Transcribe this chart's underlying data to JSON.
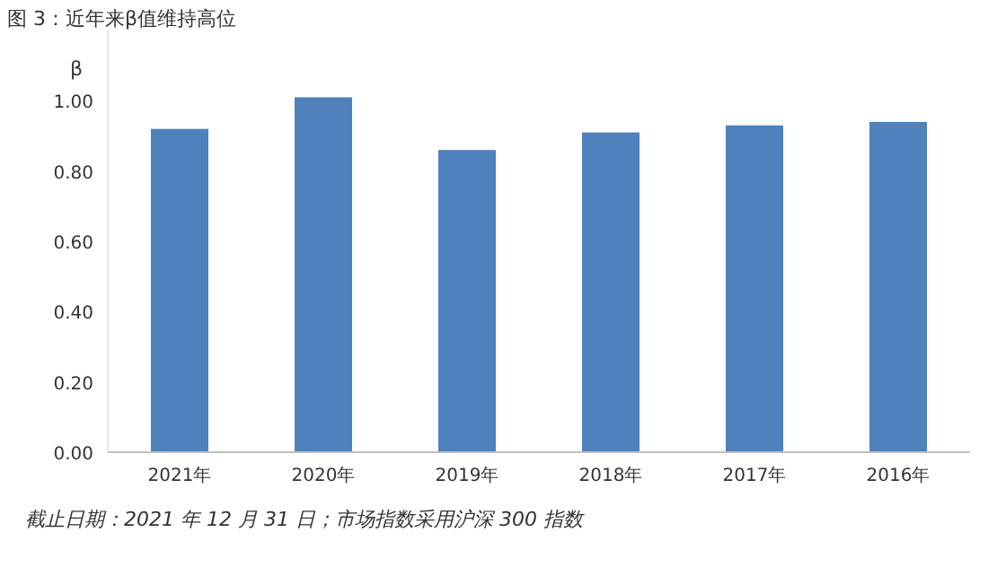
{
  "chart_data": {
    "type": "bar",
    "title": "图 3：近年来β值维持高位",
    "ylabel": "β",
    "categories": [
      "2021年",
      "2020年",
      "2019年",
      "2018年",
      "2017年",
      "2016年"
    ],
    "values": [
      0.92,
      1.01,
      0.86,
      0.91,
      0.93,
      0.94
    ],
    "color": "#4f81bd",
    "ylim": [
      0,
      1.2
    ],
    "yticks": [
      {
        "value": 0,
        "label": "0.00"
      },
      {
        "value": 0.2,
        "label": "0.20"
      },
      {
        "value": 0.4,
        "label": "0.40"
      },
      {
        "value": 0.6,
        "label": "0.60"
      },
      {
        "value": 0.8,
        "label": "0.80"
      },
      {
        "value": 1,
        "label": "1.00"
      }
    ],
    "grid": false,
    "annotations": [
      "截止日期：2021 年 12 月 31 日；市场指数采用沪深 300 指数"
    ]
  }
}
